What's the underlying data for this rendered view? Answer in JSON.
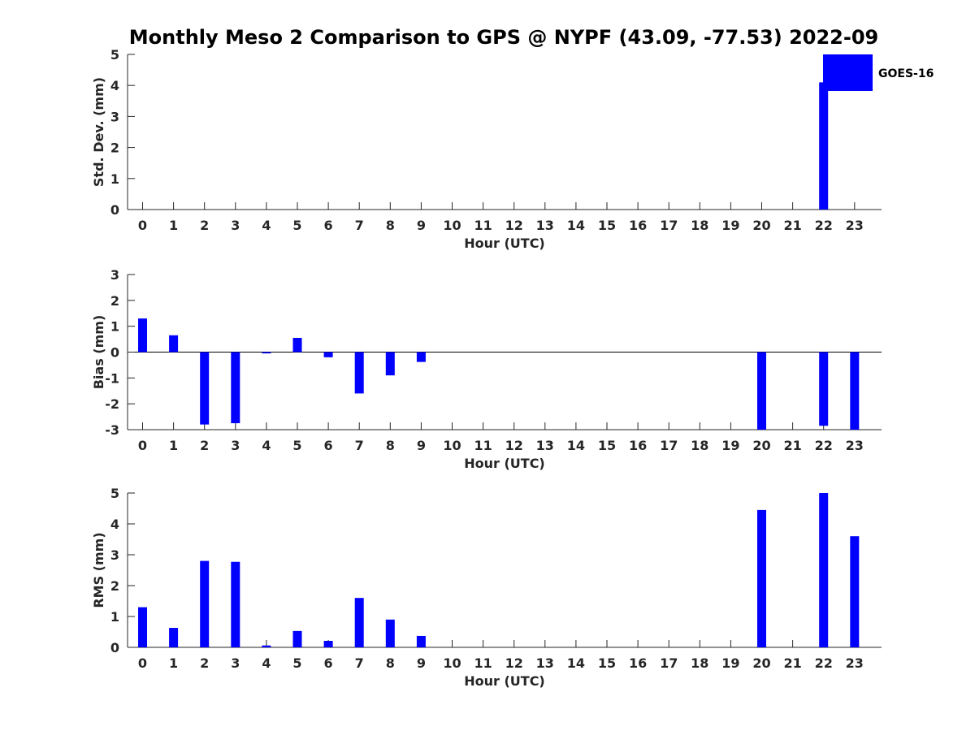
{
  "figure_title": "Monthly Meso 2 Comparison to GPS @ NYPF (43.09, -77.53) 2022-09",
  "colors": {
    "bar": "#0000ff",
    "axis": "#262626",
    "zero_line": "#000000"
  },
  "chart_data": [
    {
      "type": "bar",
      "ylabel": "Std. Dev. (mm)",
      "xlabel": "Hour (UTC)",
      "ylim": [
        0,
        5
      ],
      "yticks": [
        0,
        1,
        2,
        3,
        4,
        5
      ],
      "categories": [
        "0",
        "1",
        "2",
        "3",
        "4",
        "5",
        "6",
        "7",
        "8",
        "9",
        "10",
        "11",
        "12",
        "13",
        "14",
        "15",
        "16",
        "17",
        "18",
        "19",
        "20",
        "21",
        "22",
        "23"
      ],
      "series": [
        {
          "name": "GOES-16",
          "values": [
            null,
            null,
            null,
            null,
            null,
            null,
            null,
            null,
            null,
            null,
            null,
            null,
            null,
            null,
            null,
            null,
            null,
            null,
            null,
            null,
            null,
            null,
            4.1,
            null
          ]
        }
      ],
      "legend": {
        "position": "top-right",
        "entries": [
          "GOES-16"
        ]
      },
      "grid": false
    },
    {
      "type": "bar",
      "ylabel": "Bias (mm)",
      "xlabel": "Hour (UTC)",
      "ylim": [
        -3,
        3
      ],
      "yticks": [
        -3,
        -2,
        -1,
        0,
        1,
        2,
        3
      ],
      "categories": [
        "0",
        "1",
        "2",
        "3",
        "4",
        "5",
        "6",
        "7",
        "8",
        "9",
        "10",
        "11",
        "12",
        "13",
        "14",
        "15",
        "16",
        "17",
        "18",
        "19",
        "20",
        "21",
        "22",
        "23"
      ],
      "series": [
        {
          "name": "GOES-16",
          "values": [
            1.3,
            0.65,
            -2.8,
            -2.75,
            -0.05,
            0.55,
            -0.2,
            -1.6,
            -0.9,
            -0.38,
            null,
            null,
            null,
            null,
            null,
            null,
            null,
            null,
            null,
            null,
            -3.0,
            null,
            -2.85,
            -3.0
          ]
        }
      ],
      "grid": false
    },
    {
      "type": "bar",
      "ylabel": "RMS (mm)",
      "xlabel": "Hour (UTC)",
      "ylim": [
        0,
        5
      ],
      "yticks": [
        0,
        1,
        2,
        3,
        4,
        5
      ],
      "categories": [
        "0",
        "1",
        "2",
        "3",
        "4",
        "5",
        "6",
        "7",
        "8",
        "9",
        "10",
        "11",
        "12",
        "13",
        "14",
        "15",
        "16",
        "17",
        "18",
        "19",
        "20",
        "21",
        "22",
        "23"
      ],
      "series": [
        {
          "name": "GOES-16",
          "values": [
            1.3,
            0.63,
            2.8,
            2.77,
            0.06,
            0.53,
            0.21,
            1.6,
            0.9,
            0.37,
            null,
            null,
            null,
            null,
            null,
            null,
            null,
            null,
            null,
            null,
            4.45,
            null,
            5.0,
            3.6
          ]
        }
      ],
      "grid": false
    }
  ]
}
